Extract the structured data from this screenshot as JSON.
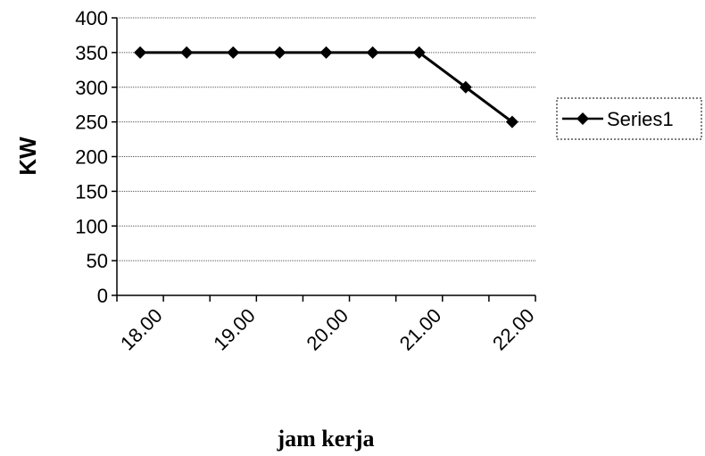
{
  "chart_data": {
    "type": "line",
    "xlabel": "jam kerja",
    "ylabel": "KW",
    "x_tick_labels": [
      "18.00",
      "19.00",
      "20.00",
      "21.00",
      "22.00"
    ],
    "ylim": [
      0,
      400
    ],
    "y_ticks": [
      0,
      50,
      100,
      150,
      200,
      250,
      300,
      350,
      400
    ],
    "grid": true,
    "legend_position": "right",
    "series": [
      {
        "name": "Series1",
        "values": [
          350,
          350,
          350,
          350,
          350,
          350,
          350,
          300,
          250
        ],
        "color": "#000000",
        "marker": "diamond"
      }
    ]
  }
}
